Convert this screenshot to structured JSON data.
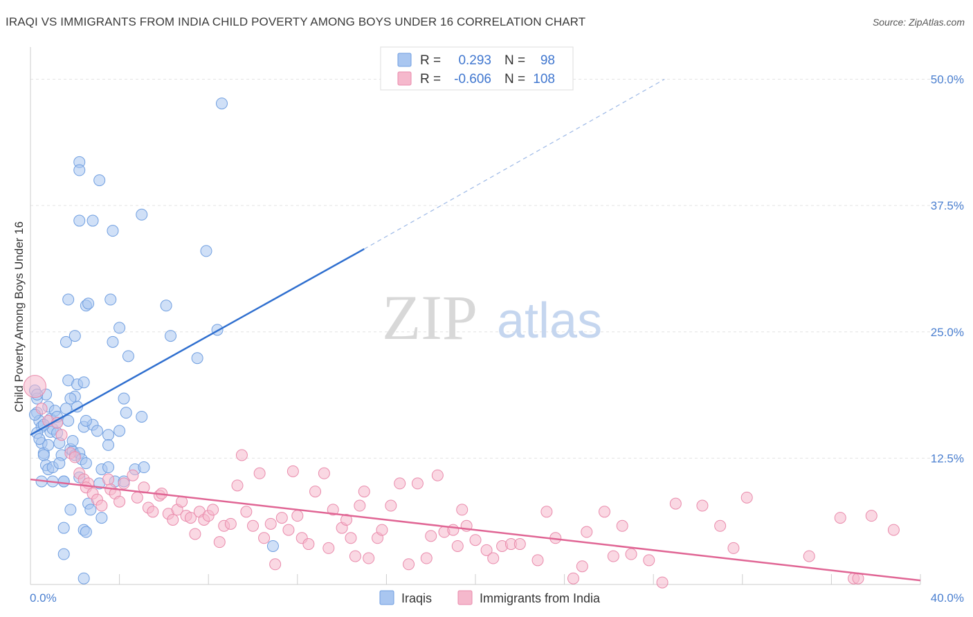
{
  "header": {
    "title": "IRAQI VS IMMIGRANTS FROM INDIA CHILD POVERTY AMONG BOYS UNDER 16 CORRELATION CHART",
    "source": "Source: ZipAtlas.com"
  },
  "watermark": {
    "zip": "ZIP",
    "atlas": "atlas"
  },
  "legend": {
    "rows": [
      {
        "r_label": "R =",
        "r_value": "0.293",
        "n_label": "N =",
        "n_value": "98",
        "color": "#a9c6f0",
        "stroke": "#6f9ee0"
      },
      {
        "r_label": "R =",
        "r_value": "-0.606",
        "n_label": "N =",
        "n_value": "108",
        "color": "#f5b8cc",
        "stroke": "#e98aab"
      }
    ]
  },
  "chart_data": {
    "type": "scatter",
    "title": "IRAQI VS IMMIGRANTS FROM INDIA CHILD POVERTY AMONG BOYS UNDER 16 CORRELATION CHART",
    "xlabel": "",
    "ylabel": "Child Poverty Among Boys Under 16",
    "xlim": [
      0,
      40
    ],
    "ylim": [
      0,
      52.5
    ],
    "x_tick_labels": [
      "0.0%",
      "40.0%"
    ],
    "y_ticks": [
      12.5,
      25.0,
      37.5,
      50.0
    ],
    "y_tick_labels": [
      "12.5%",
      "25.0%",
      "37.5%",
      "50.0%"
    ],
    "grid": true,
    "legend_position": "top-center",
    "series": [
      {
        "name": "Iraqis",
        "color": "#a9c6f0",
        "stroke": "#6f9ee0",
        "line_color": "#2f6fcf",
        "trend": {
          "x0": 0,
          "y0": 14.8,
          "x1": 15.0,
          "y1": 33.2,
          "dash_x1": 28.5,
          "dash_y1": 50.0
        },
        "points": [
          [
            0.2,
            19.2
          ],
          [
            0.3,
            18.4
          ],
          [
            0.3,
            17.0
          ],
          [
            0.4,
            16.2
          ],
          [
            0.5,
            15.6
          ],
          [
            0.5,
            14.0
          ],
          [
            0.6,
            13.0
          ],
          [
            0.7,
            18.8
          ],
          [
            0.8,
            17.6
          ],
          [
            0.9,
            16.4
          ],
          [
            0.6,
            12.8
          ],
          [
            0.7,
            11.8
          ],
          [
            0.8,
            11.4
          ],
          [
            0.9,
            15.1
          ],
          [
            1.0,
            15.4
          ],
          [
            1.1,
            17.2
          ],
          [
            1.2,
            16.0
          ],
          [
            1.3,
            14.0
          ],
          [
            1.4,
            12.8
          ],
          [
            1.5,
            10.2
          ],
          [
            1.6,
            17.4
          ],
          [
            1.7,
            16.2
          ],
          [
            1.8,
            13.4
          ],
          [
            1.9,
            13.2
          ],
          [
            2.0,
            12.8
          ],
          [
            2.1,
            17.6
          ],
          [
            2.2,
            13.0
          ],
          [
            2.3,
            12.4
          ],
          [
            2.4,
            15.6
          ],
          [
            0.5,
            10.2
          ],
          [
            1.0,
            10.2
          ],
          [
            1.5,
            10.2
          ],
          [
            2.2,
            10.6
          ],
          [
            2.8,
            15.8
          ],
          [
            3.0,
            15.2
          ],
          [
            3.1,
            10.0
          ],
          [
            3.2,
            11.4
          ],
          [
            2.5,
            16.2
          ],
          [
            2.0,
            18.6
          ],
          [
            1.8,
            18.4
          ],
          [
            1.7,
            20.2
          ],
          [
            2.1,
            19.8
          ],
          [
            2.4,
            20.0
          ],
          [
            3.5,
            14.8
          ],
          [
            4.0,
            15.2
          ],
          [
            4.2,
            18.4
          ],
          [
            4.3,
            17.0
          ],
          [
            5.0,
            16.6
          ],
          [
            4.7,
            11.4
          ],
          [
            3.8,
            10.2
          ],
          [
            2.5,
            12.0
          ],
          [
            3.5,
            11.6
          ],
          [
            4.2,
            10.2
          ],
          [
            2.6,
            8.0
          ],
          [
            2.7,
            7.4
          ],
          [
            2.4,
            5.4
          ],
          [
            2.5,
            5.2
          ],
          [
            3.2,
            6.6
          ],
          [
            1.5,
            5.6
          ],
          [
            1.8,
            7.4
          ],
          [
            1.5,
            3.0
          ],
          [
            2.4,
            0.6
          ],
          [
            10.9,
            3.8
          ],
          [
            4.4,
            22.6
          ],
          [
            3.7,
            24.0
          ],
          [
            4.0,
            25.4
          ],
          [
            1.6,
            24.0
          ],
          [
            2.0,
            24.6
          ],
          [
            6.3,
            24.6
          ],
          [
            7.5,
            22.4
          ],
          [
            8.4,
            25.2
          ],
          [
            1.7,
            28.2
          ],
          [
            2.5,
            27.6
          ],
          [
            2.6,
            27.8
          ],
          [
            3.6,
            28.2
          ],
          [
            6.1,
            27.6
          ],
          [
            2.8,
            36.0
          ],
          [
            3.7,
            35.0
          ],
          [
            5.0,
            36.6
          ],
          [
            7.9,
            33.0
          ],
          [
            2.2,
            36.0
          ],
          [
            2.2,
            41.8
          ],
          [
            2.2,
            41.0
          ],
          [
            3.1,
            40.0
          ],
          [
            8.6,
            47.6
          ],
          [
            0.3,
            15.0
          ],
          [
            0.4,
            14.4
          ],
          [
            1.2,
            15.0
          ],
          [
            0.8,
            13.8
          ],
          [
            1.0,
            11.6
          ],
          [
            0.2,
            16.8
          ],
          [
            0.3,
            18.8
          ],
          [
            0.6,
            15.8
          ],
          [
            1.3,
            12.0
          ],
          [
            3.5,
            13.8
          ],
          [
            5.1,
            11.6
          ],
          [
            1.9,
            14.2
          ],
          [
            1.2,
            16.6
          ]
        ]
      },
      {
        "name": "Immigrants from India",
        "color": "#f5b8cc",
        "stroke": "#e98aab",
        "line_color": "#e06594",
        "trend": {
          "x0": 0,
          "y0": 10.4,
          "x1": 40.0,
          "y1": 0.4
        },
        "points": [
          [
            0.2,
            19.6
          ],
          [
            0.5,
            17.4
          ],
          [
            0.8,
            16.2
          ],
          [
            1.2,
            16.0
          ],
          [
            1.4,
            14.8
          ],
          [
            1.8,
            13.0
          ],
          [
            2.0,
            12.6
          ],
          [
            2.2,
            11.0
          ],
          [
            2.4,
            10.4
          ],
          [
            2.6,
            10.0
          ],
          [
            2.5,
            9.6
          ],
          [
            2.8,
            9.0
          ],
          [
            3.0,
            8.4
          ],
          [
            3.2,
            7.8
          ],
          [
            3.5,
            10.4
          ],
          [
            3.6,
            9.4
          ],
          [
            3.8,
            9.0
          ],
          [
            4.0,
            8.2
          ],
          [
            4.2,
            10.0
          ],
          [
            4.6,
            10.8
          ],
          [
            4.8,
            8.6
          ],
          [
            5.1,
            9.6
          ],
          [
            5.3,
            7.6
          ],
          [
            5.5,
            7.2
          ],
          [
            5.8,
            8.8
          ],
          [
            5.9,
            9.0
          ],
          [
            6.2,
            7.0
          ],
          [
            6.4,
            6.4
          ],
          [
            6.6,
            7.4
          ],
          [
            6.8,
            8.2
          ],
          [
            7.0,
            6.8
          ],
          [
            7.2,
            6.6
          ],
          [
            7.4,
            5.0
          ],
          [
            7.6,
            7.2
          ],
          [
            7.8,
            6.4
          ],
          [
            8.0,
            6.8
          ],
          [
            8.2,
            7.4
          ],
          [
            8.5,
            4.2
          ],
          [
            8.7,
            5.8
          ],
          [
            9.0,
            6.0
          ],
          [
            9.3,
            9.8
          ],
          [
            9.5,
            12.8
          ],
          [
            9.7,
            7.2
          ],
          [
            10.0,
            5.8
          ],
          [
            10.3,
            11.0
          ],
          [
            10.5,
            4.6
          ],
          [
            10.8,
            6.0
          ],
          [
            11.0,
            2.0
          ],
          [
            11.3,
            6.6
          ],
          [
            11.6,
            5.4
          ],
          [
            11.8,
            11.2
          ],
          [
            12.0,
            6.8
          ],
          [
            12.2,
            4.6
          ],
          [
            12.5,
            4.0
          ],
          [
            12.8,
            9.2
          ],
          [
            13.2,
            11.0
          ],
          [
            13.4,
            3.6
          ],
          [
            13.6,
            7.4
          ],
          [
            14.0,
            5.6
          ],
          [
            14.2,
            6.4
          ],
          [
            14.4,
            4.6
          ],
          [
            14.6,
            2.8
          ],
          [
            14.8,
            7.8
          ],
          [
            15.0,
            9.2
          ],
          [
            15.2,
            2.6
          ],
          [
            15.6,
            4.6
          ],
          [
            15.8,
            5.4
          ],
          [
            16.2,
            7.8
          ],
          [
            16.6,
            10.0
          ],
          [
            17.0,
            2.0
          ],
          [
            17.4,
            10.0
          ],
          [
            17.8,
            2.6
          ],
          [
            18.0,
            4.8
          ],
          [
            18.3,
            10.8
          ],
          [
            18.6,
            5.2
          ],
          [
            19.0,
            5.4
          ],
          [
            19.2,
            3.8
          ],
          [
            19.4,
            7.4
          ],
          [
            19.6,
            5.8
          ],
          [
            20.0,
            4.4
          ],
          [
            20.5,
            3.4
          ],
          [
            20.8,
            2.6
          ],
          [
            21.2,
            3.8
          ],
          [
            21.6,
            4.0
          ],
          [
            22.0,
            4.0
          ],
          [
            22.8,
            2.4
          ],
          [
            23.2,
            7.2
          ],
          [
            23.6,
            4.6
          ],
          [
            24.4,
            0.6
          ],
          [
            24.8,
            1.8
          ],
          [
            25.0,
            5.2
          ],
          [
            25.8,
            7.2
          ],
          [
            26.2,
            2.8
          ],
          [
            26.6,
            5.8
          ],
          [
            27.0,
            3.0
          ],
          [
            27.8,
            2.4
          ],
          [
            28.4,
            0.2
          ],
          [
            29.0,
            8.0
          ],
          [
            30.2,
            7.8
          ],
          [
            31.0,
            5.8
          ],
          [
            31.6,
            3.6
          ],
          [
            32.2,
            8.6
          ],
          [
            35.0,
            2.8
          ],
          [
            36.4,
            6.6
          ],
          [
            37.0,
            0.6
          ],
          [
            37.2,
            0.6
          ],
          [
            37.8,
            6.8
          ],
          [
            38.8,
            5.4
          ]
        ]
      }
    ]
  },
  "bottom_legend": {
    "items": [
      {
        "label": "Iraqis",
        "color": "#a9c6f0",
        "stroke": "#6f9ee0"
      },
      {
        "label": "Immigrants from India",
        "color": "#f5b8cc",
        "stroke": "#e98aab"
      }
    ]
  }
}
